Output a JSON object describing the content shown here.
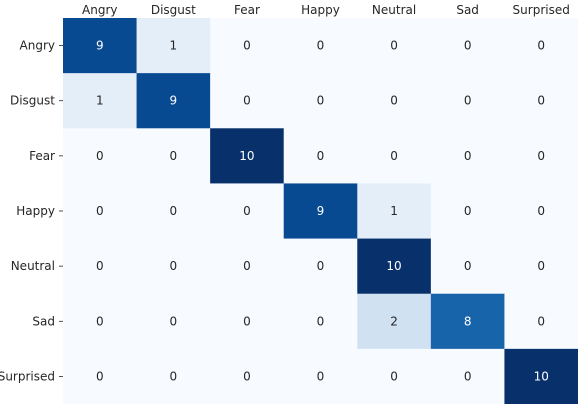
{
  "chart_data": {
    "type": "heatmap",
    "title": "",
    "xlabel": "",
    "ylabel": "",
    "x_categories": [
      "Angry",
      "Disgust",
      "Fear",
      "Happy",
      "Neutral",
      "Sad",
      "Surprised"
    ],
    "y_categories": [
      "Angry",
      "Disgust",
      "Fear",
      "Happy",
      "Neutral",
      "Sad",
      "Surprised"
    ],
    "values": [
      [
        9,
        1,
        0,
        0,
        0,
        0,
        0
      ],
      [
        1,
        9,
        0,
        0,
        0,
        0,
        0
      ],
      [
        0,
        0,
        10,
        0,
        0,
        0,
        0
      ],
      [
        0,
        0,
        0,
        9,
        1,
        0,
        0
      ],
      [
        0,
        0,
        0,
        0,
        10,
        0,
        0
      ],
      [
        0,
        0,
        0,
        0,
        2,
        8,
        0
      ],
      [
        0,
        0,
        0,
        0,
        0,
        0,
        10
      ]
    ],
    "value_range": [
      0,
      10
    ],
    "colormap": "Blues",
    "colorbar": false,
    "x_ticks_position": "top",
    "grid": false
  }
}
